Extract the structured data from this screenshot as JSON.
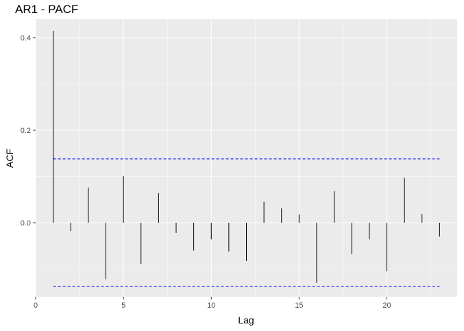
{
  "chart_data": {
    "type": "bar",
    "title": "AR1 - PACF",
    "xlabel": "Lag",
    "ylabel": "ACF",
    "x": [
      1,
      2,
      3,
      4,
      5,
      6,
      7,
      8,
      9,
      10,
      11,
      12,
      13,
      14,
      15,
      16,
      17,
      18,
      19,
      20,
      21,
      22,
      23
    ],
    "values": [
      0.415,
      -0.018,
      0.076,
      -0.122,
      0.101,
      -0.089,
      0.064,
      -0.022,
      -0.06,
      -0.036,
      -0.062,
      -0.083,
      0.045,
      0.031,
      0.018,
      -0.13,
      0.068,
      -0.068,
      -0.036,
      -0.105,
      0.097,
      0.019,
      -0.03
    ],
    "confidence_bounds": [
      0.138,
      -0.138
    ],
    "xlim": [
      0,
      24
    ],
    "ylim": [
      -0.16,
      0.44
    ],
    "x_ticks": [
      "0",
      "5",
      "10",
      "15",
      "20"
    ],
    "y_ticks": [
      "0.0",
      "0.2",
      "0.4"
    ],
    "grid": true,
    "colors": {
      "panel": "#ebebeb",
      "grid": "#ffffff",
      "bar": "#000000",
      "bound": "#0000ff"
    }
  }
}
